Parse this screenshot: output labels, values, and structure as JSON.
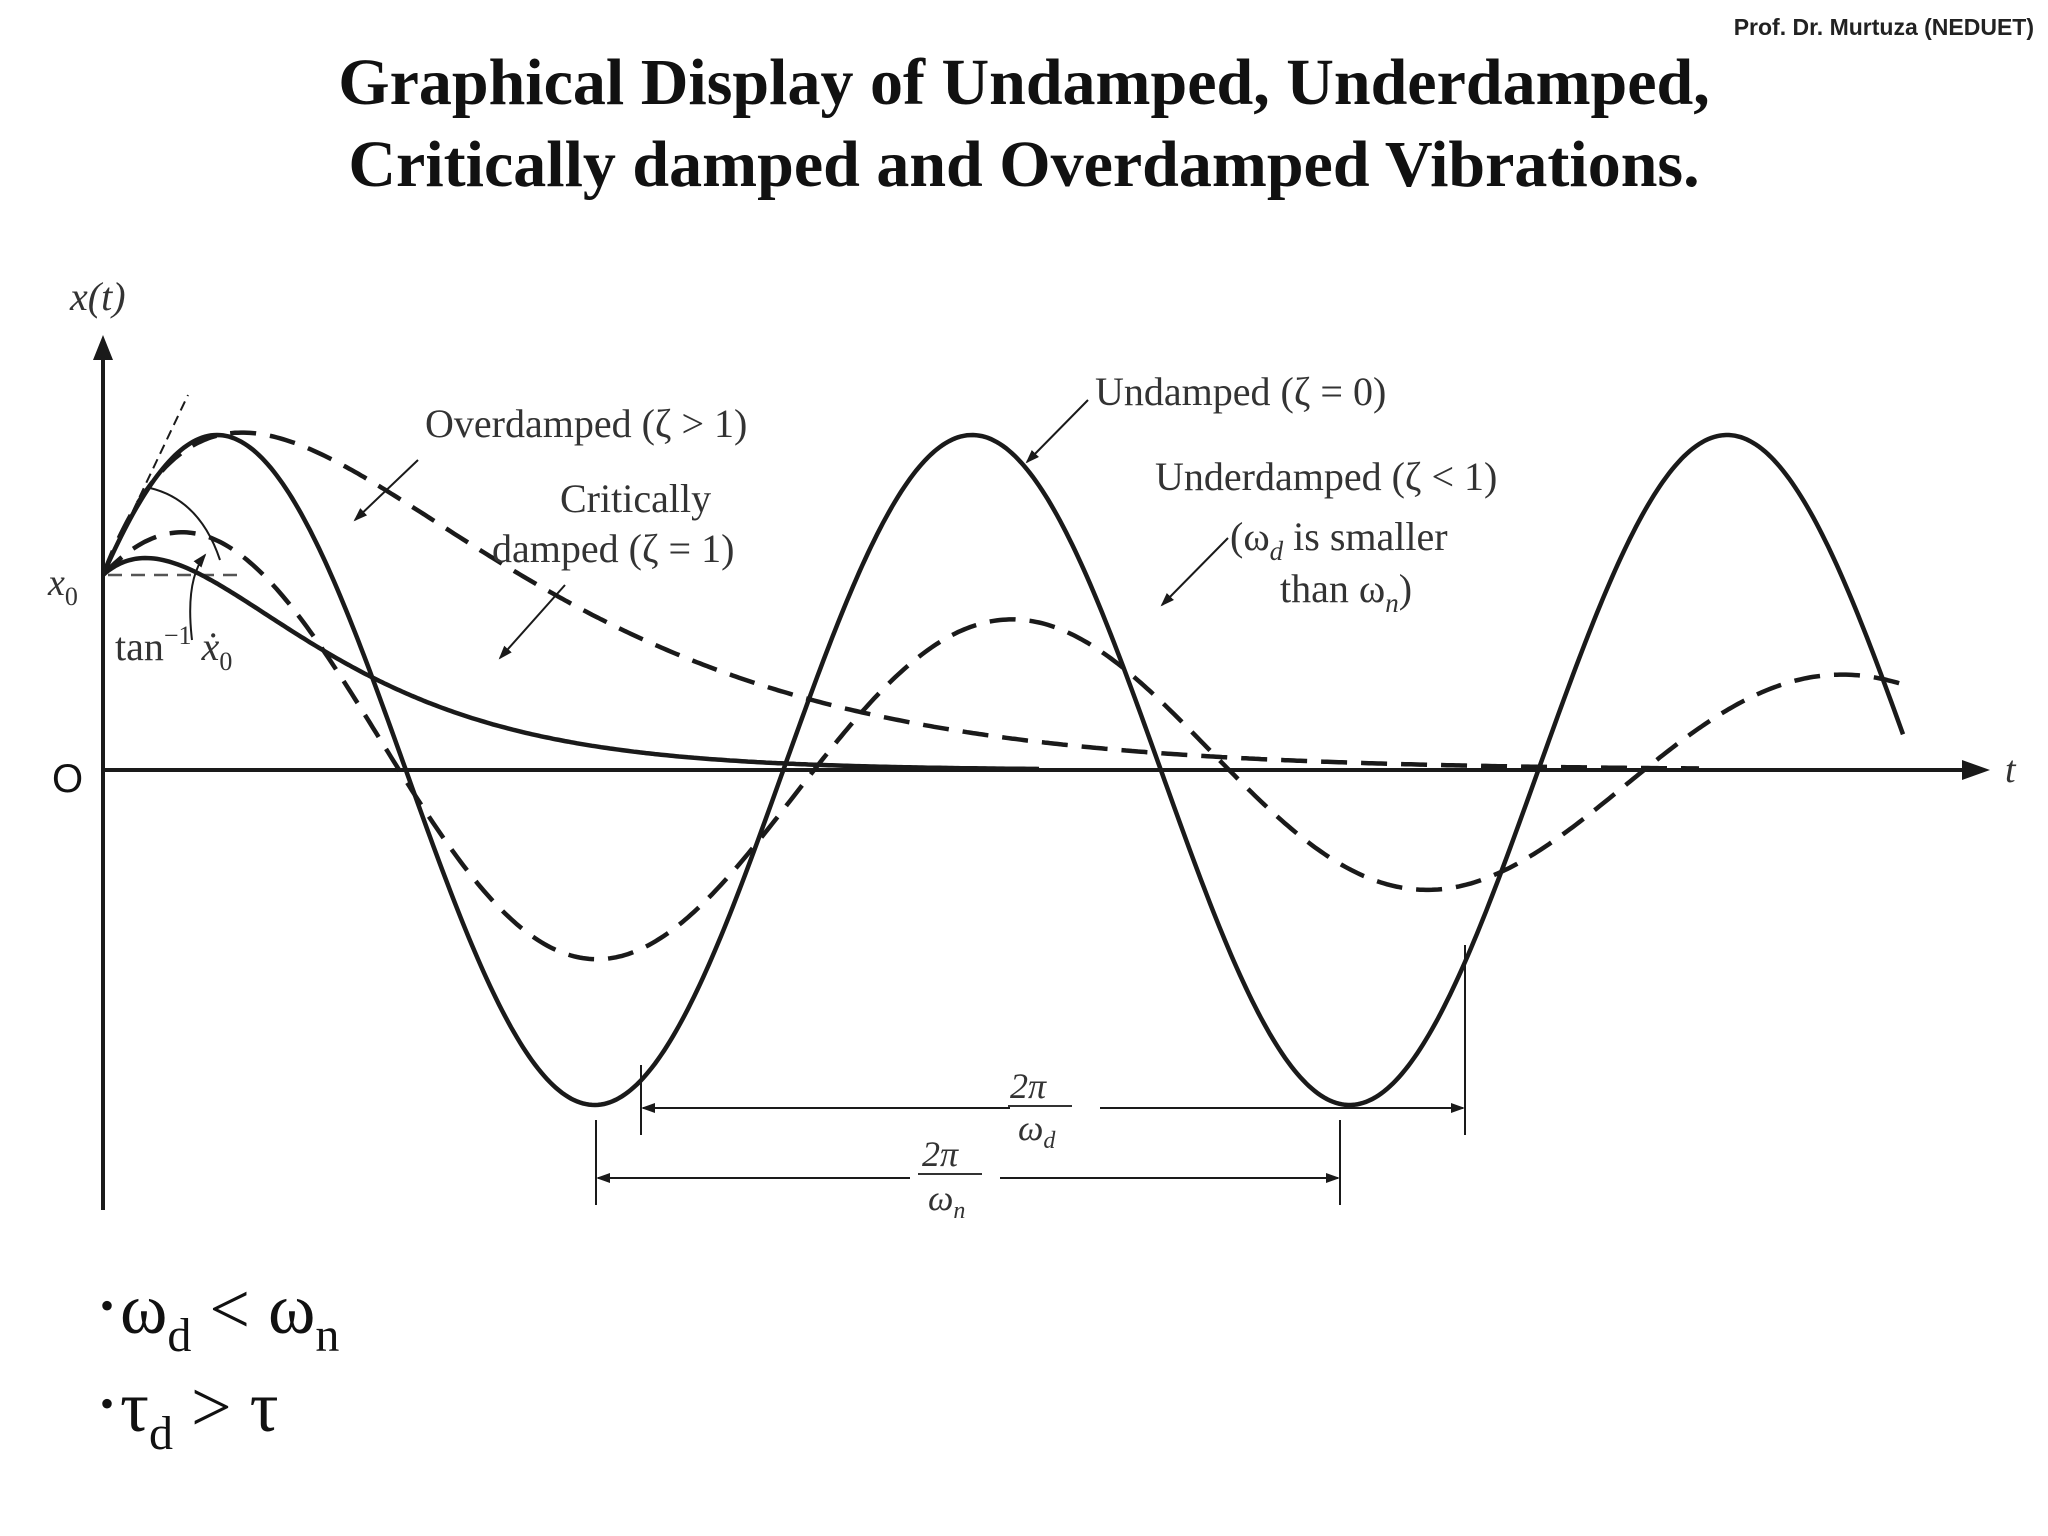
{
  "header": {
    "credit": "Prof. Dr. Murtuza (NEDUET)",
    "title_line1": "Graphical Display of Undamped, Underdamped,",
    "title_line2": "Critically damped and Overdamped Vibrations."
  },
  "figure": {
    "y_axis_label": "x(t)",
    "x_axis_label": "t",
    "origin_label": "O",
    "x0_label": "x",
    "x0_sub": "0",
    "slope_label": "tan",
    "slope_sup": "−1",
    "slope_var": "ẋ",
    "slope_sub": "0",
    "labels": {
      "overdamped": "Overdamped (ζ > 1)",
      "critical_line1": "Critically",
      "critical_line2": "damped (ζ = 1)",
      "undamped": "Undamped (ζ = 0)",
      "underdamped_line1": "Underdamped (ζ < 1)",
      "underdamped_line2_a": "(ω",
      "underdamped_line2_sub": "d",
      "underdamped_line2_b": " is smaller",
      "underdamped_line3_a": "than ω",
      "underdamped_line3_sub": "n",
      "underdamped_line3_b": ")"
    },
    "period_d_num": "2π",
    "period_d_den": "ω",
    "period_d_sub": "d",
    "period_n_num": "2π",
    "period_n_den": "ω",
    "period_n_sub": "n"
  },
  "bullets": {
    "b1_a": "ω",
    "b1_a_sub": "d",
    "b1_op": " < ",
    "b1_b": "ω",
    "b1_b_sub": "n",
    "b2_a": "τ",
    "b2_a_sub": "d",
    "b2_op": " > ",
    "b2_b": "τ"
  }
}
